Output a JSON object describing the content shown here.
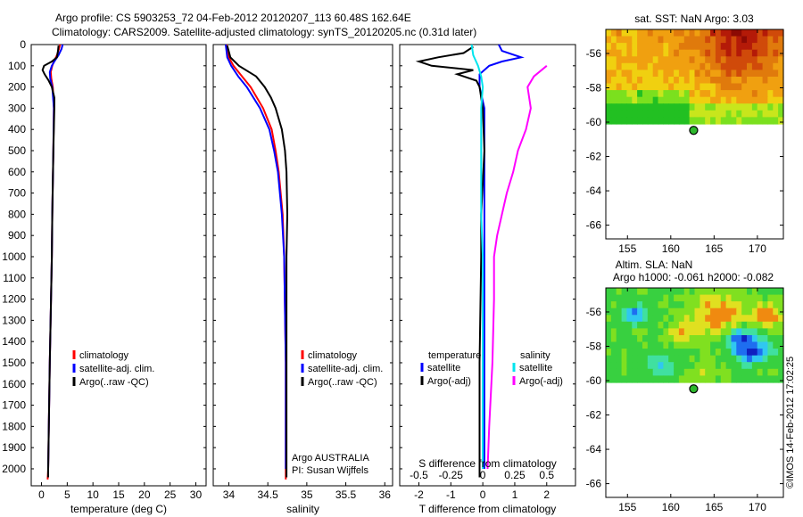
{
  "header": {
    "title_line1": "Argo profile: CS 5903253_72 04-Feb-2012 20120207_113 60.48S 162.64E",
    "title_line2": "Climatology: CARS2009. Satellite-adjusted climatology: synTS_20120205.nc (0.31d later)"
  },
  "stamp": "©IMOS 14-Feb-2012 17:02:25",
  "colors": {
    "climatology": "#ff0000",
    "satellite": "#0000ff",
    "argo": "#000000",
    "temp_sat_diff": "#00e5ee",
    "sal_diff": "#ff00ff"
  },
  "chart_data": [
    {
      "type": "line",
      "panel": "temperature",
      "xlabel": "temperature (deg C)",
      "ylabel": "",
      "xlim": [
        -2,
        32
      ],
      "ylim": [
        2080,
        0
      ],
      "xticks": [
        "0",
        "5",
        "10",
        "15",
        "20",
        "25",
        "30"
      ],
      "xtick_values": [
        0,
        5,
        10,
        15,
        20,
        25,
        30
      ],
      "yticks": [
        "0",
        "100",
        "200",
        "300",
        "400",
        "500",
        "600",
        "700",
        "800",
        "900",
        "1000",
        "1100",
        "1200",
        "1300",
        "1400",
        "1500",
        "1600",
        "1700",
        "1800",
        "1900",
        "2000"
      ],
      "legend": [
        "climatology",
        "satellite-adj. clim.",
        "Argo(..raw -QC)"
      ],
      "series": [
        {
          "name": "climatology",
          "color": "#ff0000",
          "depth": [
            0,
            20,
            50,
            80,
            100,
            130,
            160,
            200,
            300,
            500,
            800,
            1000,
            1500,
            2000,
            2050
          ],
          "values": [
            3.6,
            3.4,
            3.0,
            2.4,
            2.1,
            1.8,
            1.9,
            2.2,
            2.4,
            2.3,
            2.1,
            2.0,
            1.6,
            1.3,
            1.2
          ]
        },
        {
          "name": "satellite-adj. clim.",
          "color": "#0000ff",
          "depth": [
            0,
            20,
            50,
            80,
            100,
            130,
            160,
            200,
            300,
            500,
            800,
            1000,
            1500,
            2000
          ],
          "values": [
            4.1,
            3.9,
            3.3,
            2.5,
            2.0,
            1.6,
            1.7,
            2.1,
            2.4,
            2.3,
            2.1,
            2.0,
            1.6,
            1.3
          ]
        },
        {
          "name": "Argo(..raw -QC)",
          "color": "#000000",
          "depth": [
            5,
            30,
            60,
            80,
            100,
            120,
            140,
            170,
            200,
            250,
            300,
            500,
            800,
            1000,
            1500,
            2000,
            2040
          ],
          "values": [
            3.3,
            3.2,
            3.0,
            2.0,
            0.5,
            0.2,
            0.6,
            1.4,
            2.0,
            2.5,
            2.5,
            2.3,
            2.1,
            2.0,
            1.6,
            1.3,
            1.3
          ]
        }
      ]
    },
    {
      "type": "line",
      "panel": "salinity",
      "xlabel": "salinity",
      "xlim": [
        33.8,
        36.1
      ],
      "ylim": [
        2080,
        0
      ],
      "xticks": [
        "34",
        "34.5",
        "35",
        "35.5",
        "36"
      ],
      "xtick_values": [
        34,
        34.5,
        35,
        35.5,
        36
      ],
      "legend": [
        "climatology",
        "satellite-adj. clim.",
        "Argo(..raw -QC)"
      ],
      "annotation": [
        "Argo AUSTRALIA",
        "PI: Susan Wijffels"
      ],
      "series": [
        {
          "name": "climatology",
          "color": "#ff0000",
          "depth": [
            0,
            60,
            100,
            150,
            200,
            300,
            400,
            500,
            600,
            800,
            1000,
            1500,
            2000,
            2050
          ],
          "values": [
            33.97,
            34.0,
            34.06,
            34.17,
            34.28,
            34.44,
            34.55,
            34.6,
            34.64,
            34.69,
            34.71,
            34.73,
            34.73,
            34.73
          ]
        },
        {
          "name": "satellite-adj. clim.",
          "color": "#0000ff",
          "depth": [
            0,
            60,
            100,
            150,
            200,
            300,
            400,
            500,
            600,
            800,
            1000,
            1500,
            2000
          ],
          "values": [
            33.96,
            33.98,
            34.03,
            34.12,
            34.23,
            34.4,
            34.52,
            34.58,
            34.63,
            34.68,
            34.71,
            34.73,
            34.73
          ]
        },
        {
          "name": "Argo(..raw -QC)",
          "color": "#000000",
          "depth": [
            5,
            60,
            100,
            150,
            200,
            250,
            300,
            400,
            500,
            600,
            800,
            1000,
            1500,
            2000,
            2040
          ],
          "values": [
            33.98,
            34.02,
            34.13,
            34.35,
            34.46,
            34.54,
            34.6,
            34.68,
            34.72,
            34.74,
            34.75,
            34.74,
            34.74,
            34.74,
            34.74
          ]
        }
      ]
    },
    {
      "type": "line",
      "panel": "differences",
      "xlabel": "T difference from climatology",
      "xlabel_top": "S difference from climatology",
      "xlim": [
        -2.6,
        2.9
      ],
      "ylim": [
        2080,
        0
      ],
      "xticks": [
        "-2",
        "-1",
        "0",
        "1",
        "2"
      ],
      "xtick_values": [
        -2,
        -1,
        0,
        1,
        2
      ],
      "xticks_top": [
        "-0.5",
        "-0.25",
        "0",
        "0.25",
        "0.5"
      ],
      "legend_headers": [
        "temperature",
        "salinity"
      ],
      "legend": [
        "satellite",
        "Argo(-adj)",
        "satellite",
        "Argo(-adj)"
      ],
      "series": [
        {
          "name": "satellite",
          "color": "#0000ff",
          "depth": [
            0,
            30,
            60,
            80,
            100,
            140,
            200,
            300,
            500,
            800,
            1000,
            1500,
            2000
          ],
          "values": [
            0.5,
            0.6,
            1.2,
            0.6,
            0.2,
            -0.1,
            -0.1,
            0.05,
            0.05,
            0.05,
            0.05,
            0.05,
            0.05
          ]
        },
        {
          "name": "Argo(-adj)",
          "color": "#000000",
          "depth": [
            10,
            40,
            60,
            80,
            100,
            120,
            140,
            170,
            200,
            300,
            500,
            800,
            1000,
            1500,
            2000,
            2040
          ],
          "values": [
            -0.3,
            -0.6,
            -1.4,
            -2.0,
            -1.6,
            -0.3,
            -0.8,
            -0.2,
            -0.1,
            0.0,
            0.05,
            -0.05,
            -0.05,
            -0.1,
            -0.1,
            -0.1
          ]
        },
        {
          "name": "satellite",
          "color": "#00e5ee",
          "depth": [
            0,
            50,
            100,
            150,
            200,
            300,
            500,
            800,
            1000,
            1500,
            2000
          ],
          "values": [
            -0.35,
            -0.3,
            -0.15,
            -0.05,
            0.0,
            -0.05,
            -0.05,
            -0.05,
            0.0,
            0.0,
            0.0
          ]
        },
        {
          "name": "Argo(-adj)",
          "color": "#ff00ff",
          "depth": [
            100,
            150,
            200,
            300,
            400,
            500,
            600,
            700,
            800,
            900,
            1000,
            1200,
            1500,
            1800,
            2000
          ],
          "values": [
            2.0,
            1.6,
            1.4,
            1.5,
            1.35,
            1.1,
            0.95,
            0.75,
            0.6,
            0.45,
            0.35,
            0.35,
            0.3,
            0.2,
            0.15
          ]
        }
      ]
    },
    {
      "type": "heatmap",
      "panel": "sst_map",
      "title": "sat. SST: NaN Argo: 3.03",
      "xlim": [
        152.5,
        173
      ],
      "ylim": [
        -66.8,
        -54.6
      ],
      "xticks": [
        "155",
        "160",
        "165",
        "170"
      ],
      "xtick_values": [
        155,
        160,
        165,
        170
      ],
      "yticks": [
        "-56",
        "-58",
        "-60",
        "-62",
        "-64",
        "-66"
      ],
      "ytick_values": [
        -56,
        -58,
        -60,
        -62,
        -64,
        -66
      ],
      "data_lat_limit": -60.1,
      "argo_position": {
        "lon": 162.64,
        "lat": -60.48
      }
    },
    {
      "type": "heatmap",
      "panel": "sla_map",
      "title": "Altim. SLA: NaN",
      "subtitle": "Argo h1000: -0.061 h2000: -0.082",
      "xlim": [
        152.5,
        173
      ],
      "ylim": [
        -66.8,
        -54.6
      ],
      "xticks": [
        "155",
        "160",
        "165",
        "170"
      ],
      "xtick_values": [
        155,
        160,
        165,
        170
      ],
      "yticks": [
        "-56",
        "-58",
        "-60",
        "-62",
        "-64",
        "-66"
      ],
      "ytick_values": [
        -56,
        -58,
        -60,
        -62,
        -64,
        -66
      ],
      "data_lat_limit": -60.1,
      "argo_position": {
        "lon": 162.64,
        "lat": -60.48
      }
    }
  ]
}
